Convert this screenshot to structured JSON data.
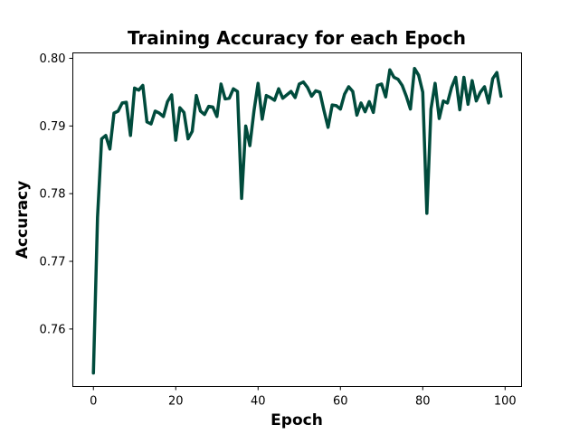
{
  "chart_data": {
    "type": "line",
    "title": "Training Accuracy for each Epoch",
    "xlabel": "Epoch",
    "ylabel": "Accuracy",
    "xlim": [
      -5,
      104
    ],
    "ylim": [
      0.7515,
      0.8008
    ],
    "xticks": [
      0,
      20,
      40,
      60,
      80,
      100
    ],
    "xtick_labels": [
      "0",
      "20",
      "40",
      "60",
      "80",
      "100"
    ],
    "yticks": [
      0.76,
      0.77,
      0.78,
      0.79,
      0.8
    ],
    "ytick_labels": [
      "0.76",
      "0.77",
      "0.78",
      "0.79",
      "0.80"
    ],
    "grid": false,
    "series": [
      {
        "name": "accuracy",
        "color": "#004b3c",
        "x": [
          0,
          1,
          2,
          3,
          4,
          5,
          6,
          7,
          8,
          9,
          10,
          11,
          12,
          13,
          14,
          15,
          16,
          17,
          18,
          19,
          20,
          21,
          22,
          23,
          24,
          25,
          26,
          27,
          28,
          29,
          30,
          31,
          32,
          33,
          34,
          35,
          36,
          37,
          38,
          39,
          40,
          41,
          42,
          43,
          44,
          45,
          46,
          47,
          48,
          49,
          50,
          51,
          52,
          53,
          54,
          55,
          56,
          57,
          58,
          59,
          60,
          61,
          62,
          63,
          64,
          65,
          66,
          67,
          68,
          69,
          70,
          71,
          72,
          73,
          74,
          75,
          76,
          77,
          78,
          79,
          80,
          81,
          82,
          83,
          84,
          85,
          86,
          87,
          88,
          89,
          90,
          91,
          92,
          93,
          94,
          95,
          96,
          97,
          98,
          99
        ],
        "values": [
          0.7535,
          0.7765,
          0.7881,
          0.7886,
          0.7866,
          0.7919,
          0.7922,
          0.7934,
          0.7935,
          0.7886,
          0.7956,
          0.7953,
          0.796,
          0.7906,
          0.7903,
          0.7922,
          0.7919,
          0.7914,
          0.7936,
          0.7946,
          0.7879,
          0.7927,
          0.792,
          0.7881,
          0.7892,
          0.7945,
          0.7922,
          0.7917,
          0.7929,
          0.7928,
          0.7914,
          0.7962,
          0.794,
          0.7941,
          0.7955,
          0.7951,
          0.7793,
          0.79,
          0.7871,
          0.7922,
          0.7963,
          0.791,
          0.7945,
          0.7942,
          0.7938,
          0.7955,
          0.7941,
          0.7946,
          0.7951,
          0.7942,
          0.7962,
          0.7965,
          0.7957,
          0.7944,
          0.7952,
          0.795,
          0.7923,
          0.7898,
          0.7931,
          0.793,
          0.7925,
          0.7947,
          0.7958,
          0.7951,
          0.7916,
          0.7934,
          0.7921,
          0.7936,
          0.792,
          0.796,
          0.7962,
          0.7943,
          0.7983,
          0.7972,
          0.7969,
          0.796,
          0.7944,
          0.7925,
          0.7985,
          0.7975,
          0.795,
          0.7771,
          0.7925,
          0.7963,
          0.7911,
          0.7937,
          0.7934,
          0.7957,
          0.7972,
          0.7924,
          0.7972,
          0.7932,
          0.7967,
          0.7937,
          0.795,
          0.7958,
          0.7934,
          0.797,
          0.7979,
          0.7944
        ]
      }
    ]
  }
}
